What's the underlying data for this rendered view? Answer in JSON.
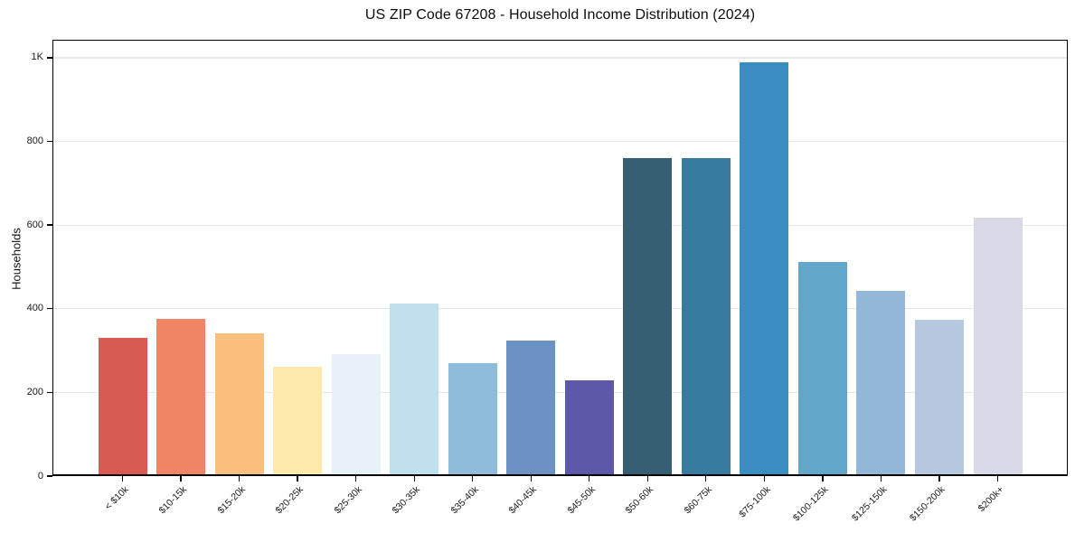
{
  "chart_data": {
    "type": "bar",
    "title": "US ZIP Code 67208 - Household Income Distribution (2024)",
    "xlabel": "",
    "ylabel": "Households",
    "categories": [
      "< $10k",
      "$10-15k",
      "$15-20k",
      "$20-25k",
      "$25-30k",
      "$30-35k",
      "$35-40k",
      "$40-45k",
      "$45-50k",
      "$50-60k",
      "$60-75k",
      "$75-100k",
      "$100-125k",
      "$125-150k",
      "$150-200k",
      "$200k+"
    ],
    "values": [
      330,
      375,
      342,
      261,
      292,
      412,
      270,
      325,
      230,
      760,
      760,
      990,
      512,
      443,
      374,
      618
    ],
    "bar_colors": [
      "#d85b52",
      "#f08465",
      "#fcbe7e",
      "#fde9a9",
      "#e7f1f8",
      "#c0e0ed",
      "#90bcdb",
      "#6b92c3",
      "#5b59a8",
      "#365f73",
      "#377ba0",
      "#398dc1",
      "#62a7c9",
      "#92b7d7",
      "#b6c8e0",
      "#d8dae7"
    ],
    "yticks": [
      {
        "value": 0,
        "label": "0"
      },
      {
        "value": 200,
        "label": "200"
      },
      {
        "value": 400,
        "label": "400"
      },
      {
        "value": 600,
        "label": "600"
      },
      {
        "value": 800,
        "label": "800"
      },
      {
        "value": 1000,
        "label": "1K"
      }
    ],
    "ylim": [
      0,
      1043
    ],
    "grid": "horizontal-light",
    "legend": "none",
    "colors": {
      "axis_frame": "#000000",
      "grid_line": "#e8e8e8",
      "tick_text": "#1a1a1a",
      "title_text": "#0d0d0d",
      "background": "#ffffff"
    }
  }
}
